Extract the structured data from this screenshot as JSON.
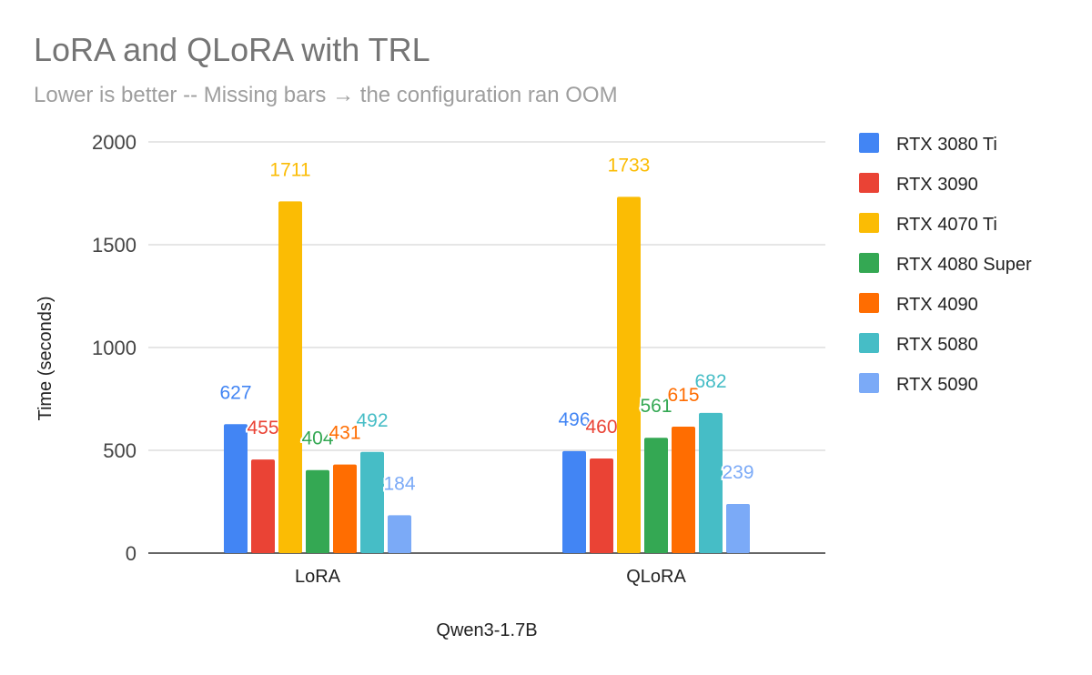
{
  "chart_data": {
    "type": "bar",
    "title": "LoRA and QLoRA with TRL",
    "subtitle": "Lower is better -- Missing bars → the configuration ran OOM",
    "xlabel": "Qwen3-1.7B",
    "ylabel": "Time (seconds)",
    "ylim": [
      0,
      2000
    ],
    "yticks": [
      0,
      500,
      1000,
      1500,
      2000
    ],
    "grid": true,
    "legend_position": "right",
    "categories": [
      "LoRA",
      "QLoRA"
    ],
    "series": [
      {
        "name": "RTX 3080 Ti",
        "color": "#4285f4",
        "values": [
          627,
          496
        ]
      },
      {
        "name": "RTX 3090",
        "color": "#ea4335",
        "values": [
          455,
          460
        ]
      },
      {
        "name": "RTX 4070 Ti",
        "color": "#fbbc04",
        "values": [
          1711,
          1733
        ]
      },
      {
        "name": "RTX 4080 Super",
        "color": "#34a853",
        "values": [
          404,
          561
        ]
      },
      {
        "name": "RTX 4090",
        "color": "#ff6d01",
        "values": [
          431,
          615
        ]
      },
      {
        "name": "RTX 5080",
        "color": "#46bdc6",
        "values": [
          492,
          682
        ]
      },
      {
        "name": "RTX 5090",
        "color": "#7baaf7",
        "values": [
          184,
          239
        ]
      }
    ]
  }
}
